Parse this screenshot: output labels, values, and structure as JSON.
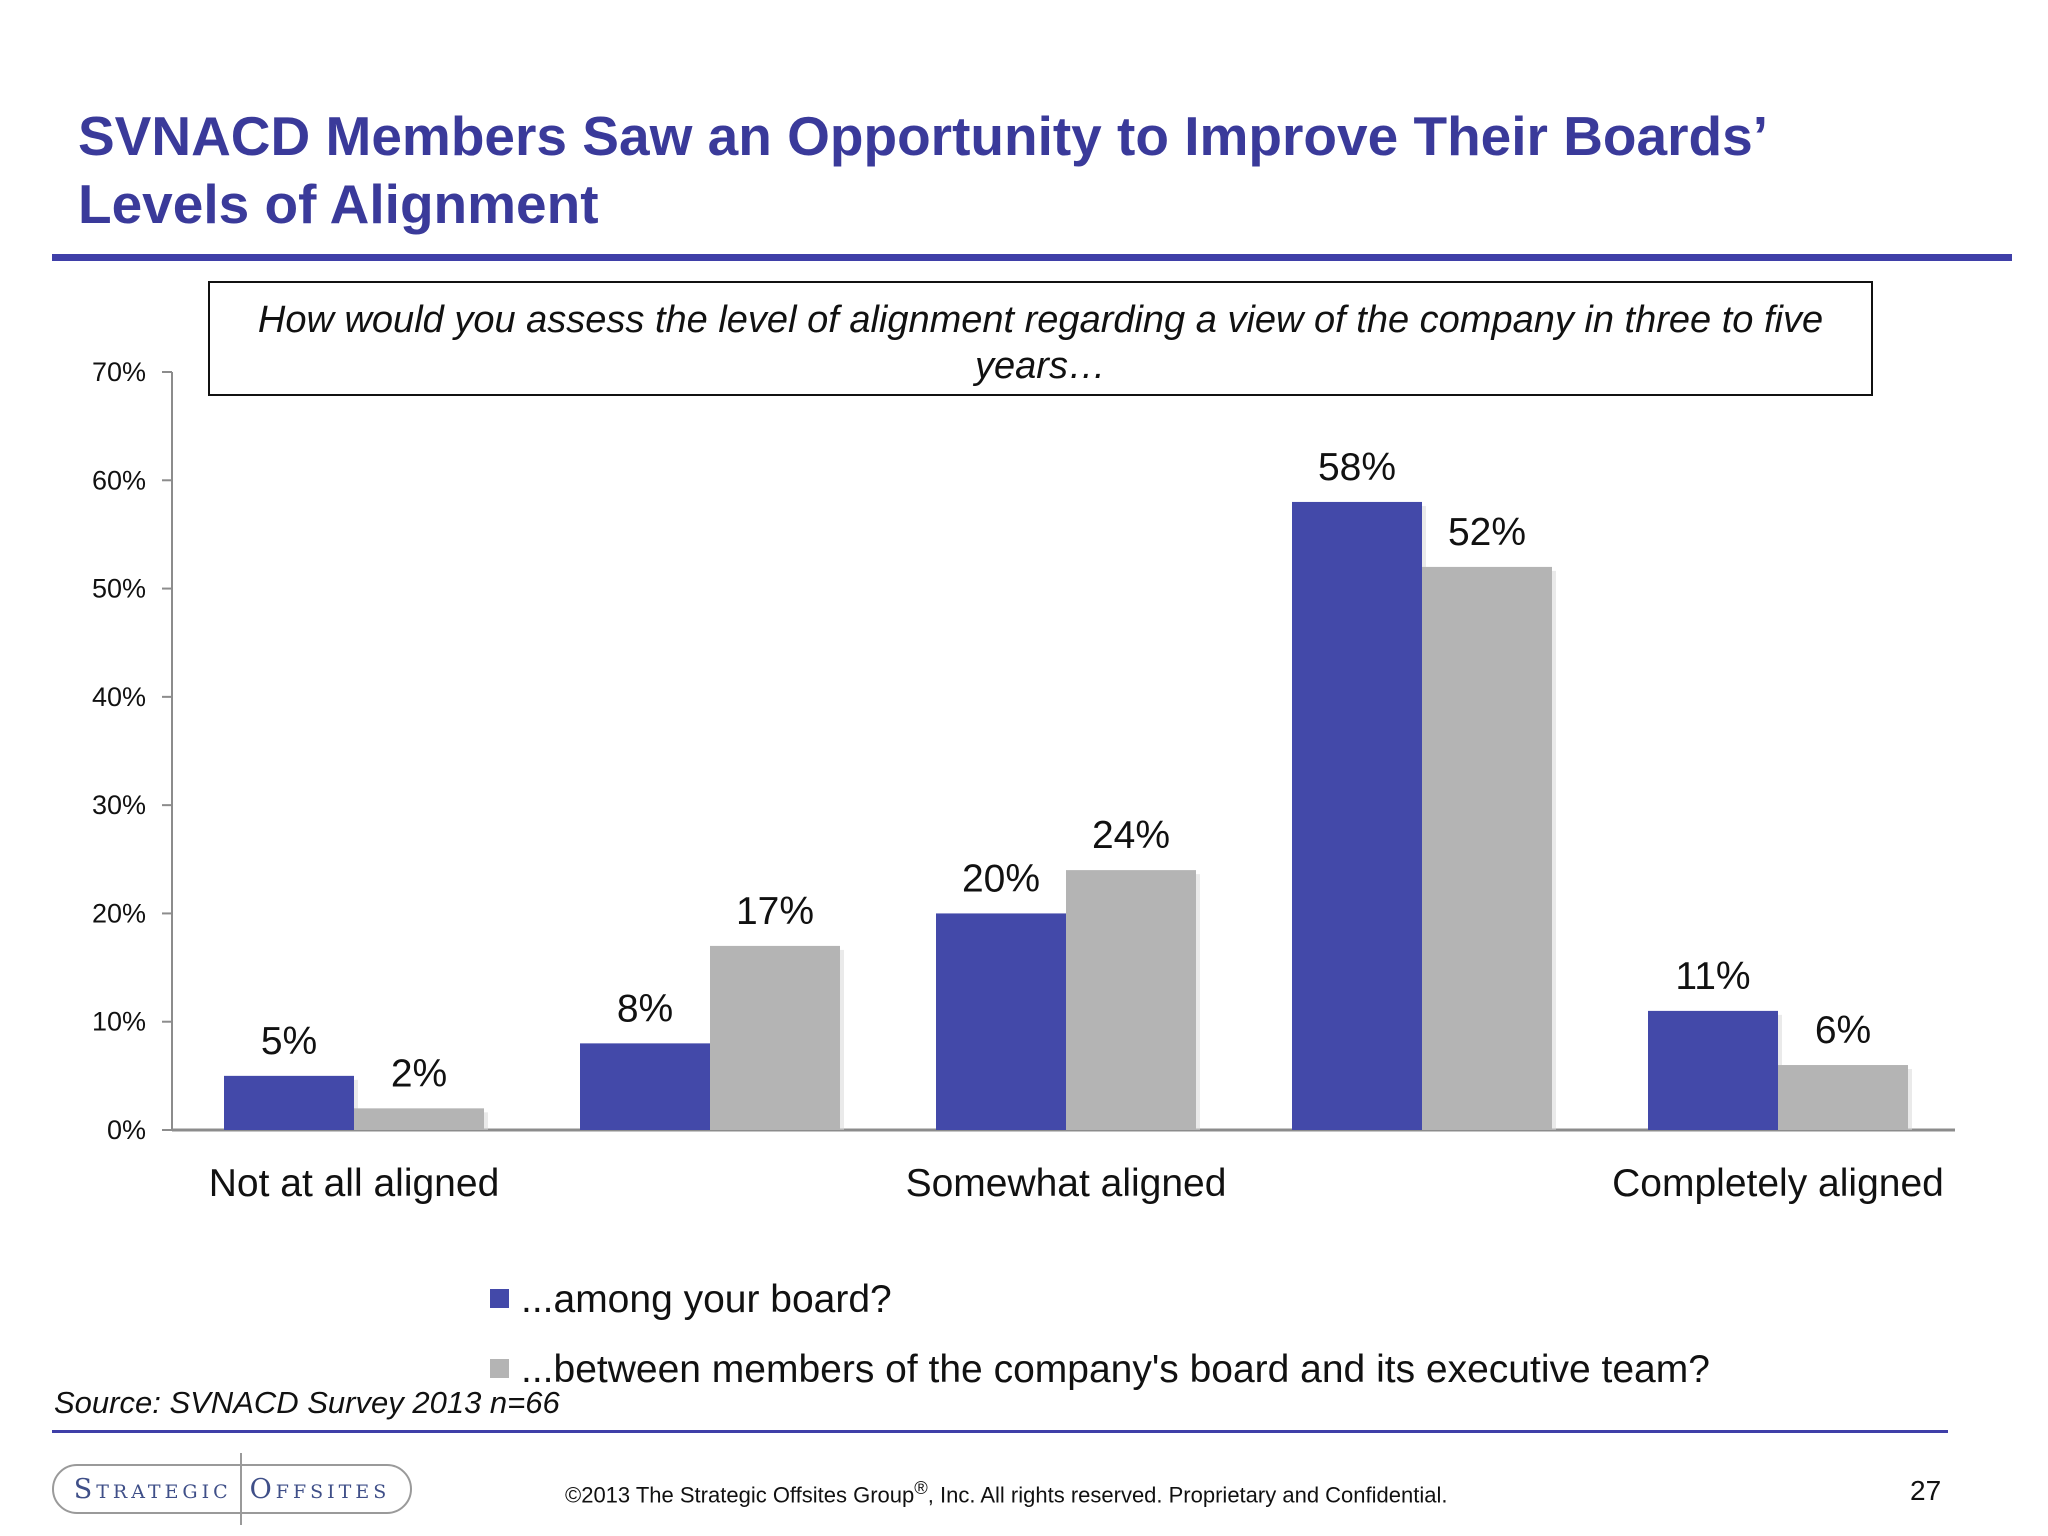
{
  "slide": {
    "title_line1": "SVNACD Members Saw an Opportunity to Improve Their Boards’",
    "title_line2": "Levels of Alignment",
    "title_color": "#3a3a9a",
    "question": "How would you assess the level of alignment regarding a view of the company in three to five years…",
    "source": "Source:  SVNACD Survey 2013 n=66",
    "copyright_prefix": "©2013 The Strategic Offsites Group",
    "copyright_mark": "®",
    "copyright_suffix": ", Inc.  All rights reserved. Proprietary and Confidential.",
    "page_number": "27",
    "logo_left": "Strategic",
    "logo_right": "Offsites"
  },
  "chart_data": {
    "type": "bar",
    "title": "",
    "xlabel": "",
    "ylabel": "",
    "ylim": [
      0,
      70
    ],
    "yticks": [
      "0%",
      "10%",
      "20%",
      "30%",
      "40%",
      "50%",
      "60%",
      "70%"
    ],
    "ytick_values": [
      0,
      10,
      20,
      30,
      40,
      50,
      60,
      70
    ],
    "categories": [
      "Not at all aligned",
      "",
      "Somewhat aligned",
      "",
      "Completely aligned"
    ],
    "series": [
      {
        "name": "...among your board?",
        "color": "#4349a9",
        "values": [
          5,
          8,
          20,
          58,
          11
        ],
        "labels": [
          "5%",
          "8%",
          "20%",
          "58%",
          "11%"
        ]
      },
      {
        "name": "...between members of the company's board and its executive team?",
        "color": "#b4b4b4",
        "values": [
          2,
          17,
          24,
          52,
          6
        ],
        "labels": [
          "2%",
          "17%",
          "24%",
          "52%",
          "6%"
        ]
      }
    ],
    "legend_position": "bottom",
    "grid": false
  }
}
